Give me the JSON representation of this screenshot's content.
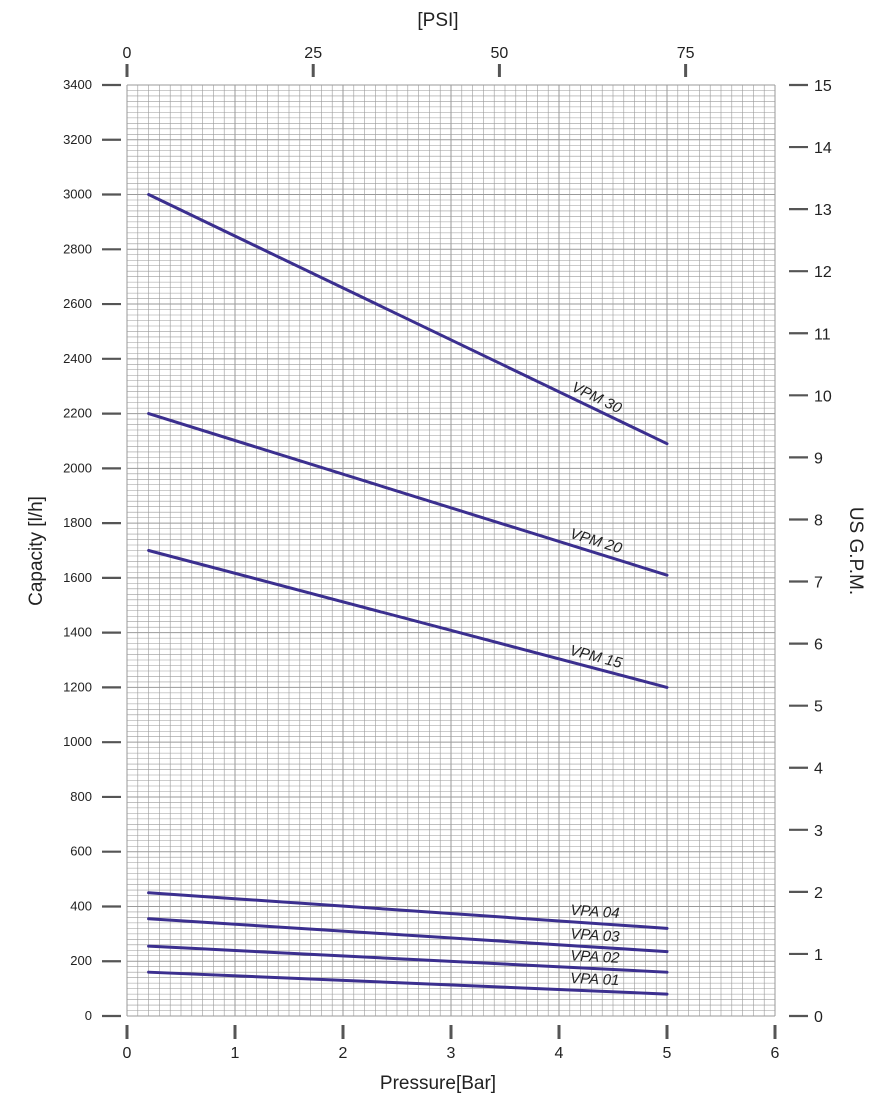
{
  "chart_data": {
    "type": "line",
    "title": "",
    "xlabel": "Pressure[Bar]",
    "ylabel": "Capacity  [l/h]",
    "x2label": "[PSI]",
    "y2label": "US G.P.M.",
    "xlim": [
      0,
      6
    ],
    "ylim": [
      0,
      3400
    ],
    "x2lim": [
      0,
      87
    ],
    "y2lim": [
      0,
      15
    ],
    "grid": true,
    "x_ticks": [
      0,
      1,
      2,
      3,
      4,
      5,
      6
    ],
    "y_ticks": [
      0,
      200,
      400,
      600,
      800,
      1000,
      1200,
      1400,
      1600,
      1800,
      2000,
      2200,
      2400,
      2600,
      2800,
      3000,
      3200,
      3400
    ],
    "x2_ticks": [
      0,
      25,
      50,
      75
    ],
    "y2_ticks": [
      0,
      1,
      2,
      3,
      4,
      5,
      6,
      7,
      8,
      9,
      10,
      11,
      12,
      13,
      14,
      15
    ],
    "series": [
      {
        "name": "VPM 30",
        "x": [
          0.2,
          5
        ],
        "values": [
          3000,
          2090
        ]
      },
      {
        "name": "VPM 20",
        "x": [
          0.2,
          5
        ],
        "values": [
          2200,
          1610
        ]
      },
      {
        "name": "VPM 15",
        "x": [
          0.2,
          5
        ],
        "values": [
          1700,
          1200
        ]
      },
      {
        "name": "VPA 04",
        "x": [
          0.2,
          5
        ],
        "values": [
          450,
          320
        ]
      },
      {
        "name": "VPA 03",
        "x": [
          0.2,
          5
        ],
        "values": [
          355,
          235
        ]
      },
      {
        "name": "VPA 02",
        "x": [
          0.2,
          5
        ],
        "values": [
          255,
          160
        ]
      },
      {
        "name": "VPA 01",
        "x": [
          0.2,
          5
        ],
        "values": [
          160,
          80
        ]
      }
    ],
    "line_color": "#3b2f8f",
    "grid_color": "#9a9a9a"
  }
}
